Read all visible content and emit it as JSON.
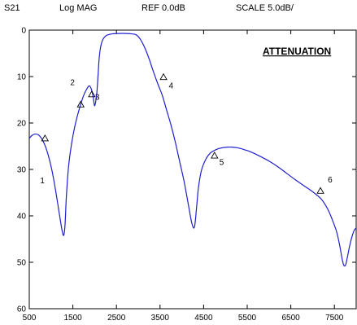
{
  "header": {
    "parameter": "S21",
    "format": "Log MAG",
    "reference": "REF 0.0dB",
    "scale": "SCALE 5.0dB/"
  },
  "colors": {
    "trace": "#1f1fd0",
    "axis": "#000000",
    "background": "#ffffff"
  },
  "chart_data": {
    "type": "line",
    "title": "",
    "annotation": "ATTENUATION",
    "xlabel": "",
    "ylabel": "",
    "xlim": [
      500,
      8000
    ],
    "ylim": [
      60,
      0
    ],
    "y_inverted": true,
    "grid": false,
    "x_ticks": [
      500,
      1500,
      2500,
      3500,
      4500,
      5500,
      6500,
      7500
    ],
    "y_ticks": [
      0,
      10,
      20,
      30,
      40,
      50,
      60
    ],
    "series": [
      {
        "x": [
          500,
          560,
          620,
          700,
          780,
          860,
          940,
          1020,
          1100,
          1180,
          1250,
          1290,
          1320,
          1350,
          1400,
          1470,
          1550,
          1650,
          1750,
          1830,
          1880,
          1920,
          1950,
          1970,
          1985,
          2000,
          2020,
          2050,
          2080,
          2100,
          2130,
          2180,
          2260,
          2400,
          2600,
          2800,
          2950,
          3050,
          3150,
          3250,
          3350,
          3450,
          3550,
          3650,
          3750,
          3850,
          3950,
          4050,
          4150,
          4230,
          4290,
          4340,
          4380,
          4450,
          4550,
          4650,
          4750,
          4850,
          4950,
          5050,
          5150,
          5250,
          5350,
          5450,
          5550,
          5650,
          5800,
          6000,
          6200,
          6400,
          6600,
          6800,
          7000,
          7200,
          7350,
          7450,
          7550,
          7620,
          7680,
          7720,
          7760,
          7800,
          7850,
          7900,
          7950,
          8000
        ],
        "y": [
          23.3,
          22.7,
          22.4,
          22.5,
          23.3,
          24.8,
          27.1,
          30.2,
          34.3,
          39.0,
          43.0,
          44.2,
          42.0,
          36.0,
          29.5,
          24.5,
          20.5,
          16.9,
          14.0,
          12.5,
          12.0,
          12.6,
          13.6,
          14.6,
          15.7,
          16.3,
          15.6,
          13.5,
          9.5,
          6.5,
          4.0,
          2.2,
          1.2,
          0.8,
          0.7,
          0.75,
          1.0,
          2.0,
          3.8,
          6.2,
          9.0,
          11.6,
          14.0,
          17.2,
          20.4,
          24.1,
          28.3,
          32.5,
          37.6,
          41.6,
          42.4,
          38.0,
          34.0,
          30.2,
          27.8,
          26.5,
          25.9,
          25.5,
          25.3,
          25.2,
          25.2,
          25.3,
          25.5,
          25.8,
          26.1,
          26.5,
          27.2,
          28.2,
          29.4,
          30.8,
          32.2,
          33.5,
          34.8,
          36.4,
          38.6,
          40.8,
          43.4,
          46.3,
          49.4,
          50.7,
          50.5,
          48.8,
          46.5,
          44.6,
          43.2,
          42.6
        ]
      }
    ],
    "markers": [
      {
        "label": "1",
        "x": 860,
        "y": 23.5,
        "label_x": 750,
        "label_y": 33.0
      },
      {
        "label": "2",
        "x": 1680,
        "y": 16.2,
        "label_x": 1440,
        "label_y": 11.8
      },
      {
        "label": "3",
        "x": 1935,
        "y": 14.0,
        "label_x": 2010,
        "label_y": 15.0
      },
      {
        "label": "4",
        "x": 3580,
        "y": 10.3,
        "label_x": 3700,
        "label_y": 12.5
      },
      {
        "label": "5",
        "x": 4750,
        "y": 27.2,
        "label_x": 4860,
        "label_y": 29.0
      },
      {
        "label": "6",
        "x": 7180,
        "y": 34.8,
        "label_x": 7350,
        "label_y": 32.8
      }
    ]
  }
}
